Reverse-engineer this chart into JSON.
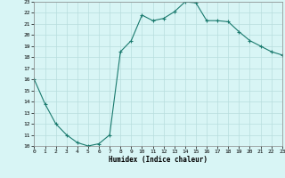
{
  "xlabel": "Humidex (Indice chaleur)",
  "x": [
    0,
    1,
    2,
    3,
    4,
    5,
    6,
    7,
    8,
    9,
    10,
    11,
    12,
    13,
    14,
    15,
    16,
    17,
    18,
    19,
    20,
    21,
    22,
    23
  ],
  "y": [
    16,
    13.8,
    12,
    11,
    10.3,
    10,
    10.2,
    11,
    18.5,
    19.5,
    21.8,
    21.3,
    21.5,
    22.1,
    23.0,
    22.9,
    21.3,
    21.3,
    21.2,
    20.3,
    19.5,
    19.0,
    18.5,
    18.2
  ],
  "ylim": [
    10,
    23
  ],
  "xlim": [
    0,
    23
  ],
  "yticks": [
    10,
    11,
    12,
    13,
    14,
    15,
    16,
    17,
    18,
    19,
    20,
    21,
    22,
    23
  ],
  "xticks": [
    0,
    1,
    2,
    3,
    4,
    5,
    6,
    7,
    8,
    9,
    10,
    11,
    12,
    13,
    14,
    15,
    16,
    17,
    18,
    19,
    20,
    21,
    22,
    23
  ],
  "line_color": "#1a7a6e",
  "marker": "+",
  "bg_color": "#d8f5f5",
  "grid_color": "#b8dede"
}
